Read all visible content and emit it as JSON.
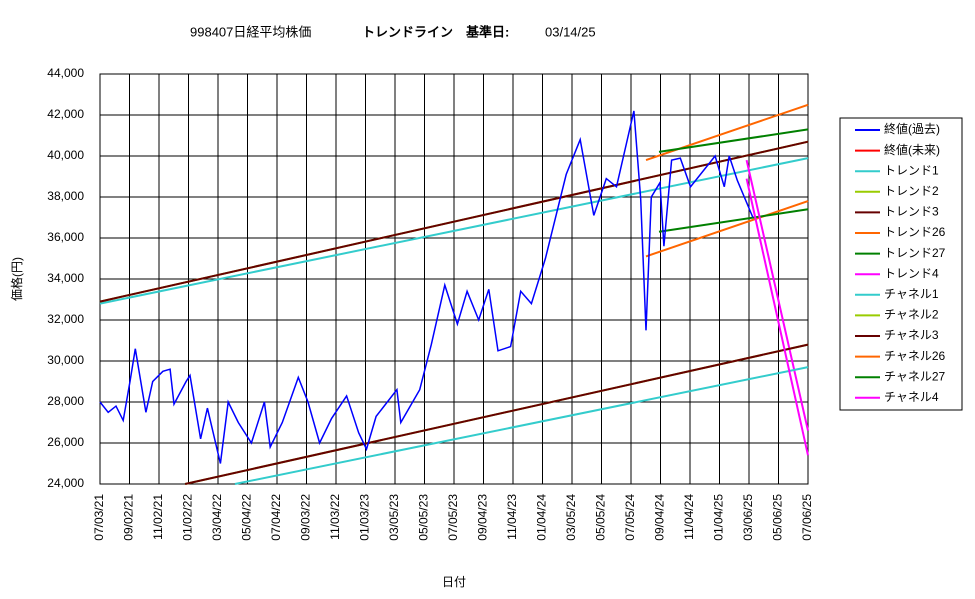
{
  "chart_data": {
    "type": "line",
    "title": "998407日経平均株価",
    "subtitle": "トレンドライン　基準日:",
    "reference_date": "03/14/25",
    "xlabel": "日付",
    "ylabel": "価格(円)",
    "xlim": [
      "07/03/21",
      "07/06/25"
    ],
    "xticks": [
      "07/03/21",
      "09/02/21",
      "11/02/21",
      "01/02/22",
      "03/04/22",
      "05/04/22",
      "07/04/22",
      "09/03/22",
      "11/03/22",
      "01/03/23",
      "03/05/23",
      "05/05/23",
      "07/05/23",
      "09/04/23",
      "11/04/23",
      "01/04/24",
      "03/05/24",
      "05/05/24",
      "07/05/24",
      "09/04/24",
      "11/04/24",
      "01/04/25",
      "03/06/25",
      "05/06/25",
      "07/06/25"
    ],
    "ylim": [
      24000,
      44000
    ],
    "yticks": [
      {
        "value": 24000,
        "label": "24,000"
      },
      {
        "value": 26000,
        "label": "26,000"
      },
      {
        "value": 28000,
        "label": "28,000"
      },
      {
        "value": 30000,
        "label": "30,000"
      },
      {
        "value": 32000,
        "label": "32,000"
      },
      {
        "value": 34000,
        "label": "34,000"
      },
      {
        "value": 36000,
        "label": "36,000"
      },
      {
        "value": 38000,
        "label": "38,000"
      },
      {
        "value": 40000,
        "label": "40,000"
      },
      {
        "value": 42000,
        "label": "42,000"
      },
      {
        "value": 44000,
        "label": "44,000"
      }
    ],
    "grid": true,
    "legend": "right",
    "series": [
      {
        "name": "終値(過去)",
        "color": "#0000ff",
        "x": [
          "07/03/21",
          "07/20/21",
          "08/05/21",
          "08/20/21",
          "09/03/21",
          "09/14/21",
          "10/06/21",
          "10/20/21",
          "11/10/21",
          "11/25/21",
          "12/03/21",
          "12/28/21",
          "01/05/22",
          "01/27/22",
          "02/10/22",
          "03/09/22",
          "03/25/22",
          "04/15/22",
          "05/12/22",
          "06/08/22",
          "06/20/22",
          "07/15/22",
          "08/17/22",
          "09/06/22",
          "09/30/22",
          "10/25/22",
          "11/25/22",
          "12/20/22",
          "01/05/23",
          "01/25/23",
          "03/09/23",
          "03/17/23",
          "04/25/23",
          "05/19/23",
          "06/16/23",
          "07/12/23",
          "08/01/23",
          "08/25/23",
          "09/15/23",
          "10/04/23",
          "10/30/23",
          "11/20/23",
          "12/12/23",
          "01/10/24",
          "02/22/24",
          "03/22/24",
          "04/19/24",
          "05/15/24",
          "06/05/24",
          "07/11/24",
          "07/25/24",
          "08/05/24",
          "08/16/24",
          "09/03/24",
          "09/11/24",
          "09/27/24",
          "10/15/24",
          "11/05/24",
          "12/26/24",
          "01/14/25",
          "01/24/25",
          "02/10/25",
          "03/14/25"
        ],
        "values": [
          28000,
          27500,
          27800,
          27100,
          29000,
          30600,
          27500,
          29000,
          29500,
          29600,
          27900,
          29000,
          29300,
          26200,
          27700,
          25000,
          28000,
          27000,
          26000,
          28000,
          25800,
          27000,
          29200,
          28000,
          26000,
          27200,
          28300,
          26500,
          25700,
          27300,
          28600,
          27000,
          28600,
          30800,
          33700,
          31800,
          33400,
          32000,
          33500,
          30500,
          30700,
          33400,
          32800,
          35000,
          39100,
          40800,
          37100,
          38900,
          38500,
          42200,
          37900,
          31500,
          38000,
          38700,
          35600,
          39800,
          39900,
          38500,
          40000,
          38500,
          40000,
          38800,
          37000
        ]
      },
      {
        "name": "終値(未来)",
        "color": "#ff0000",
        "x": [],
        "values": []
      },
      {
        "name": "トレンド1",
        "color": "#33cccc",
        "x": [
          "07/03/21",
          "07/06/25"
        ],
        "values": [
          32800,
          39900
        ]
      },
      {
        "name": "トレンド2",
        "color": "#99cc00",
        "x": [
          "07/03/21",
          "07/06/25"
        ],
        "values": [
          32900,
          40700
        ]
      },
      {
        "name": "トレンド3",
        "color": "#660000",
        "x": [
          "07/03/21",
          "07/06/25"
        ],
        "values": [
          32900,
          40700
        ]
      },
      {
        "name": "トレンド26",
        "color": "#ff6600",
        "x": [
          "08/05/24",
          "07/06/25"
        ],
        "values": [
          35100,
          37800
        ]
      },
      {
        "name": "トレンド27",
        "color": "#008000",
        "x": [
          "09/01/24",
          "07/06/25"
        ],
        "values": [
          36300,
          37400
        ]
      },
      {
        "name": "トレンド4",
        "color": "#ff00ff",
        "x": [
          "03/01/25",
          "07/06/25"
        ],
        "values": [
          39800,
          26600
        ]
      },
      {
        "name": "チャネル1",
        "color": "#33cccc",
        "x": [
          "04/08/22",
          "07/06/25"
        ],
        "values": [
          24000,
          29700
        ]
      },
      {
        "name": "チャネル2",
        "color": "#99cc00",
        "x": [
          "12/26/21",
          "07/06/25"
        ],
        "values": [
          24000,
          30800
        ]
      },
      {
        "name": "チャネル3",
        "color": "#660000",
        "x": [
          "12/26/21",
          "07/06/25"
        ],
        "values": [
          24000,
          30800
        ]
      },
      {
        "name": "チャネル26",
        "color": "#ff6600",
        "x": [
          "08/05/24",
          "07/06/25"
        ],
        "values": [
          39800,
          42500
        ]
      },
      {
        "name": "チャネル27",
        "color": "#008000",
        "x": [
          "09/01/24",
          "07/06/25"
        ],
        "values": [
          40200,
          41300
        ]
      },
      {
        "name": "チャネル4",
        "color": "#ff00ff",
        "x": [
          "03/01/25",
          "07/06/25"
        ],
        "values": [
          38900,
          25400
        ]
      }
    ]
  }
}
